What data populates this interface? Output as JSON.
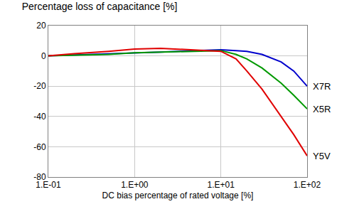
{
  "chart_data": {
    "type": "line",
    "title": "Percentage loss of capacitance [%]",
    "x_label": "DC bias percentage of rated voltage [%]",
    "log": "x",
    "grid": true,
    "x": [
      0.1,
      0.2,
      0.5,
      1,
      2,
      5,
      10,
      15,
      20,
      30,
      50,
      70,
      100
    ],
    "series": [
      {
        "name": "X7R",
        "color": "#0000cc",
        "values": [
          0,
          0.5,
          1.5,
          2,
          2.5,
          3.5,
          4,
          3.5,
          3,
          1,
          -4,
          -10,
          -20
        ]
      },
      {
        "name": "X5R",
        "color": "#009900",
        "values": [
          0,
          0.5,
          1,
          2,
          2.5,
          3,
          3.5,
          1,
          -2,
          -8,
          -18,
          -26,
          -35
        ]
      },
      {
        "name": "Y5V",
        "color": "#e00000",
        "values": [
          0,
          1.5,
          3,
          4.5,
          5,
          4,
          3,
          -2,
          -10,
          -22,
          -40,
          -52,
          -66
        ]
      }
    ],
    "xlim": [
      0.1,
      100
    ],
    "xticks": [
      {
        "value": 0.1,
        "label": "1.E-01"
      },
      {
        "value": 1,
        "label": "1.E+00"
      },
      {
        "value": 10,
        "label": "1.E+01"
      },
      {
        "value": 100,
        "label": "1.E+02"
      }
    ],
    "ylim": [
      -80,
      20
    ],
    "yticks": [
      -80,
      -60,
      -40,
      -20,
      0,
      20
    ]
  }
}
